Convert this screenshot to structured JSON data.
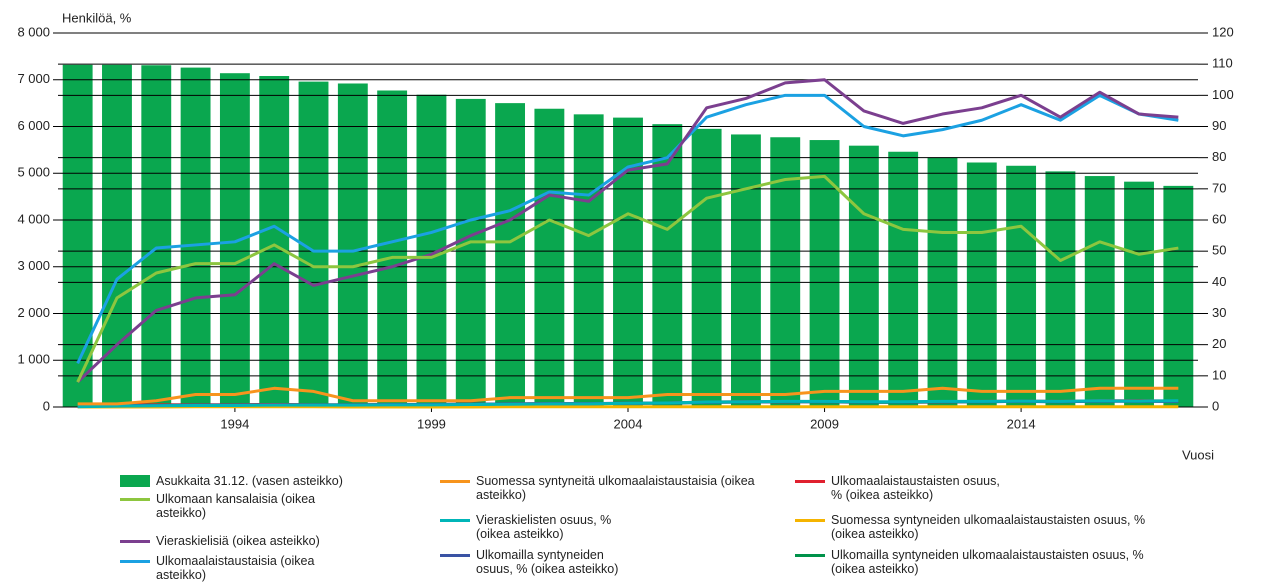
{
  "chart_data": {
    "type": "bar",
    "y_label": "Henkilöä, %",
    "x_label": "Vuosi",
    "categories": [
      null,
      null,
      null,
      null,
      "1994",
      null,
      null,
      null,
      null,
      "1999",
      null,
      null,
      null,
      null,
      "2004",
      null,
      null,
      null,
      null,
      "2009",
      null,
      null,
      null,
      null,
      "2014",
      null,
      null,
      null,
      null
    ],
    "ylim": [
      0,
      8000
    ],
    "yticks": [
      {
        "value": 0,
        "label": "0"
      },
      {
        "value": 1000,
        "label": "1 000"
      },
      {
        "value": 2000,
        "label": "2 000"
      },
      {
        "value": 3000,
        "label": "3 000"
      },
      {
        "value": 4000,
        "label": "4 000"
      },
      {
        "value": 5000,
        "label": "5 000"
      },
      {
        "value": 6000,
        "label": "6 000"
      },
      {
        "value": 7000,
        "label": "7 000"
      },
      {
        "value": 8000,
        "label": "8 000"
      }
    ],
    "y2lim": [
      0,
      120
    ],
    "y2ticks": [
      0,
      10,
      20,
      30,
      40,
      50,
      60,
      70,
      80,
      90,
      100,
      110,
      120
    ],
    "grid": true,
    "series": [
      {
        "name": "Asukkaita 31.12. (vasen asteikko)",
        "type": "bar",
        "color": "#0aa74f",
        "values": [
          7320,
          7320,
          7310,
          7260,
          7140,
          7080,
          6960,
          6920,
          6770,
          6680,
          6590,
          6500,
          6380,
          6260,
          6190,
          6050,
          5950,
          5830,
          5770,
          5710,
          5590,
          5460,
          5340,
          5230,
          5160,
          5040,
          4940,
          4820,
          4730
        ]
      },
      {
        "name": "Ulkomaan kansalaisia (oikea asteikko)",
        "type": "line",
        "axis": "y2",
        "color": "#8dc63f",
        "values": [
          8,
          35,
          43,
          46,
          46,
          52,
          45,
          45,
          48,
          48,
          53,
          53,
          60,
          55,
          62,
          57,
          67,
          70,
          73,
          74,
          62,
          57,
          56,
          56,
          58,
          47,
          53,
          49,
          51
        ]
      },
      {
        "name": "Vieraskielisiä (oikea asteikko)",
        "type": "line",
        "axis": "y2",
        "color": "#7b3f8f",
        "values": [
          8,
          20,
          31,
          35,
          36,
          46,
          39,
          42,
          45,
          49,
          55,
          60,
          68,
          66,
          76,
          78,
          96,
          99,
          104,
          105,
          95,
          91,
          94,
          96,
          100,
          93,
          101,
          94,
          93
        ]
      },
      {
        "name": "Ulkomaalaistaustaisia (oikea asteikko)",
        "type": "line",
        "axis": "y2",
        "color": "#1ba1e2",
        "values": [
          14,
          41,
          51,
          52,
          53,
          58,
          50,
          50,
          53,
          56,
          60,
          63,
          69,
          68,
          77,
          80,
          93,
          97,
          100,
          100,
          90,
          87,
          89,
          92,
          97,
          92,
          100,
          94,
          92
        ]
      },
      {
        "name": "Suomessa syntyneitä ulkomaalaistaustaisia (oikea asteikko)",
        "type": "line",
        "axis": "y2",
        "color": "#f7941d",
        "values": [
          1,
          1,
          2,
          4,
          4,
          6,
          5,
          2,
          2,
          2,
          2,
          3,
          3,
          3,
          3,
          4,
          4,
          4,
          4,
          5,
          5,
          5,
          6,
          5,
          5,
          5,
          6,
          6,
          6
        ]
      },
      {
        "name": "Vieraskielisten osuus, % (oikea asteikko)",
        "type": "line",
        "axis": "y2",
        "color": "#00b5b8",
        "values": [
          0.1,
          0.3,
          0.4,
          0.5,
          0.5,
          0.6,
          0.6,
          0.6,
          0.7,
          0.7,
          0.8,
          0.9,
          1,
          1,
          1.2,
          1.3,
          1.6,
          1.7,
          1.8,
          1.8,
          1.7,
          1.7,
          1.8,
          1.8,
          1.9,
          1.8,
          2,
          1.9,
          2
        ]
      },
      {
        "name": "Ulkomailla syntyneiden osuus, % (oikea asteikko)",
        "type": "line",
        "axis": "y2",
        "color": "#3a53a4",
        "values": [
          0.2,
          0.4,
          0.5,
          0.6,
          0.6,
          0.7,
          0.7,
          0.7,
          0.8,
          0.8,
          0.9,
          1,
          1.1,
          1.1,
          1.2,
          1.3,
          1.5,
          1.6,
          1.7,
          1.7,
          1.6,
          1.6,
          1.7,
          1.7,
          1.8,
          1.7,
          1.9,
          1.8,
          1.8
        ]
      },
      {
        "name": "Ulkomaalaistaustaisten osuus, % (oikea asteikko)",
        "type": "line",
        "axis": "y2",
        "color": "#e0202e",
        "values": [
          0.2,
          0.6,
          0.7,
          0.7,
          0.7,
          0.8,
          0.7,
          0.7,
          0.8,
          0.8,
          0.9,
          1,
          1.1,
          1.1,
          1.2,
          1.3,
          1.6,
          1.7,
          1.7,
          1.8,
          1.6,
          1.6,
          1.7,
          1.8,
          1.9,
          1.8,
          2,
          2,
          1.9
        ]
      },
      {
        "name": "Suomessa syntyneiden ulkomaalaistaustaisten osuus, % (oikea asteikko)",
        "type": "line",
        "axis": "y2",
        "color": "#f5b400",
        "values": [
          0,
          0,
          0,
          0.1,
          0.1,
          0.1,
          0.1,
          0,
          0,
          0,
          0,
          0.1,
          0.1,
          0.1,
          0.1,
          0.1,
          0.1,
          0.1,
          0.1,
          0.1,
          0.1,
          0.1,
          0.1,
          0.1,
          0.1,
          0.1,
          0.1,
          0.1,
          0.1
        ]
      },
      {
        "name": "Ulkomailla syntyneiden ulkomaalaistaustaisten osuus, % (oikea asteikko)",
        "type": "line",
        "axis": "y2",
        "color": "#00924a",
        "values": [
          0.2,
          0.5,
          0.7,
          0.7,
          0.7,
          0.8,
          0.7,
          0.7,
          0.8,
          0.8,
          0.9,
          0.9,
          1.1,
          1,
          1.2,
          1.2,
          1.5,
          1.6,
          1.7,
          1.7,
          1.5,
          1.5,
          1.6,
          1.7,
          1.8,
          1.7,
          1.9,
          1.9,
          1.8
        ]
      }
    ]
  }
}
